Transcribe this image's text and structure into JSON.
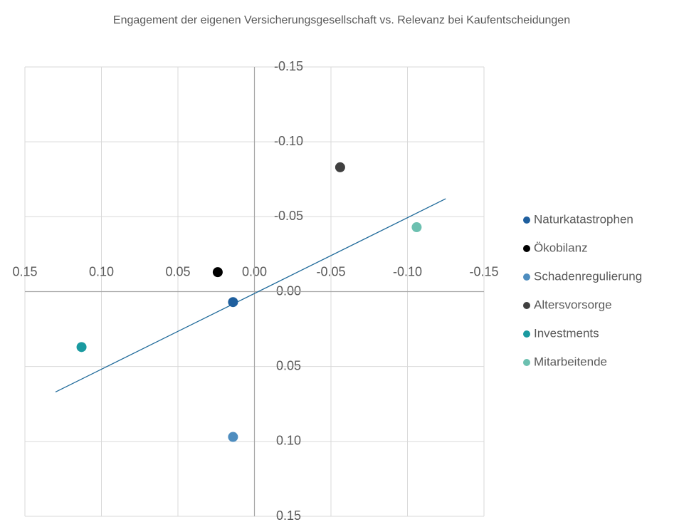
{
  "chart_data": {
    "type": "scatter",
    "title": "Engagement der eigenen Versicherungsgesellschaft vs. Relevanz bei Kaufentscheidungen",
    "xlim": [
      -0.15,
      0.15
    ],
    "ylim": [
      -0.15,
      0.15
    ],
    "x_reversed": true,
    "y_reversed": true,
    "xticks": [
      0.15,
      {
        "value": 0.1,
        "label": "0.10"
      },
      0.05,
      {
        "value": 0,
        "label": "0.00"
      },
      -0.05,
      {
        "value": -0.1,
        "label": "-0.10"
      },
      -0.15
    ],
    "yticks": [
      -0.15,
      {
        "value": -0.1,
        "label": "-0.10"
      },
      -0.05,
      {
        "value": 0,
        "label": "0.00"
      },
      0.05,
      {
        "value": 0.1,
        "label": "0.10"
      },
      0.15
    ],
    "grid": true,
    "legend": "right",
    "series": [
      {
        "name": "Naturkatastrophen",
        "color": "#1f5f9e",
        "x": [
          0.014
        ],
        "values": [
          0.007
        ]
      },
      {
        "name": "Ökobilanz",
        "color": "#000000",
        "x": [
          0.024
        ],
        "values": [
          -0.013
        ]
      },
      {
        "name": "Schadenregulierung",
        "color": "#4e8dbf",
        "x": [
          0.014
        ],
        "values": [
          0.097
        ]
      },
      {
        "name": "Altersvorsorge",
        "color": "#404040",
        "x": [
          -0.056
        ],
        "values": [
          -0.083
        ]
      },
      {
        "name": "Investments",
        "color": "#1a9aa0",
        "x": [
          0.113
        ],
        "values": [
          0.037
        ]
      },
      {
        "name": "Mitarbeitende",
        "color": "#6cc0b0",
        "x": [
          -0.106
        ],
        "values": [
          -0.043
        ]
      }
    ],
    "trendline": {
      "color": "#1f6a9a",
      "x": [
        0.13,
        -0.125
      ],
      "values": [
        0.067,
        -0.062
      ]
    }
  }
}
